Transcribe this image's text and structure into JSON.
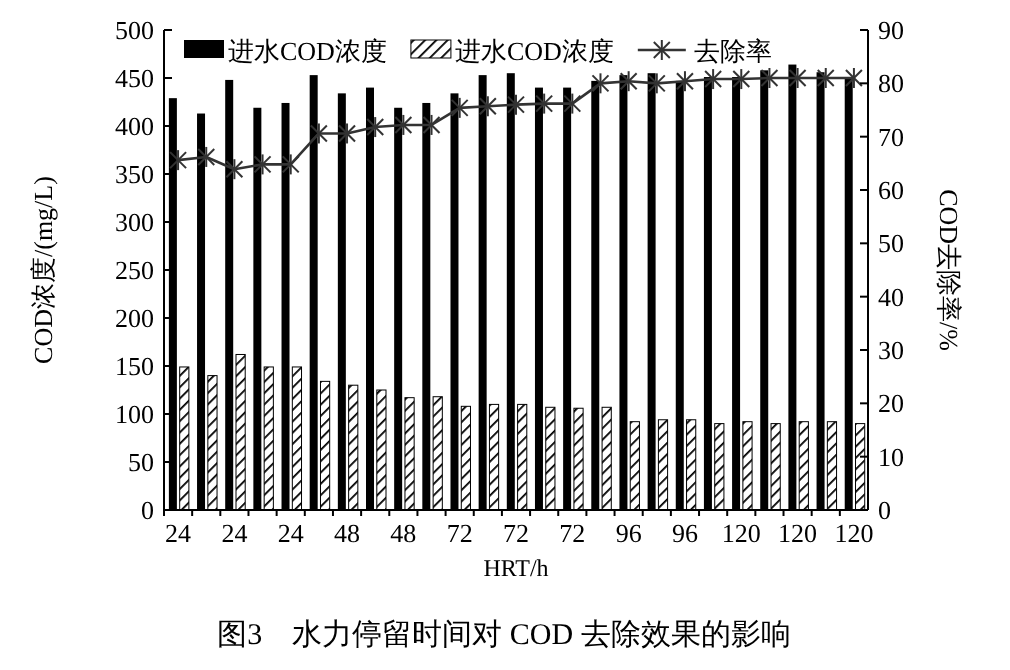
{
  "chart_data": {
    "type": "bar",
    "categories": [
      "24",
      null,
      "24",
      null,
      "24",
      null,
      "48",
      null,
      "48",
      null,
      "72",
      null,
      "72",
      null,
      "72",
      null,
      "96",
      null,
      "96",
      null,
      "120",
      null,
      "120",
      null,
      "120"
    ],
    "series": [
      {
        "name": "进水COD浓度",
        "color": "#000000",
        "values": [
          429,
          413,
          448,
          419,
          424,
          453,
          434,
          440,
          419,
          424,
          434,
          453,
          455,
          440,
          440,
          447,
          453,
          455,
          447,
          451,
          451,
          458,
          464,
          456,
          449
        ]
      },
      {
        "name": "进水COD浓度",
        "color": "#000000",
        "values": [
          149,
          140,
          162,
          149,
          149,
          134,
          130,
          125,
          117,
          118,
          108,
          110,
          110,
          107,
          106,
          107,
          92,
          94,
          94,
          90,
          92,
          90,
          92,
          92,
          90
        ]
      },
      {
        "name": "去除率",
        "type": "line",
        "axis": "y2",
        "marker": "cross",
        "color": "#333333",
        "values": [
          65.6,
          66.2,
          63.9,
          64.8,
          64.8,
          70.6,
          70.6,
          71.8,
          72.2,
          72.2,
          75.4,
          75.7,
          76,
          76.2,
          76.2,
          80,
          80.4,
          80,
          80.4,
          80.8,
          80.8,
          81,
          81,
          81,
          81
        ]
      }
    ],
    "ylim": [
      0,
      500
    ],
    "yticks": [
      0,
      50,
      100,
      150,
      200,
      250,
      300,
      350,
      400,
      450,
      500
    ],
    "y2lim": [
      0,
      90
    ],
    "y2ticks": [
      0,
      10,
      20,
      30,
      40,
      50,
      60,
      70,
      80,
      90
    ],
    "xlabel": "HRT/h",
    "ylabel": "COD浓度/(mg/L)",
    "y2label": "COD去除率/%",
    "legend": "top",
    "annotations": [
      "图3　水力停留时间对 COD 去除效果的影响"
    ]
  }
}
